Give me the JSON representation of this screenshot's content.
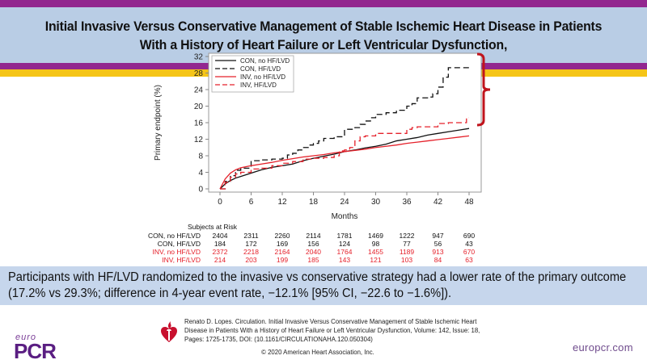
{
  "header": {
    "title": "Initial Invasive Versus Conservative Management of Stable Ischemic Heart Disease in Patients With a History of Heart Failure or Left Ventricular Dysfunction,"
  },
  "colors": {
    "purple": "#92278f",
    "title_band": "#b9cde5",
    "yellow": "#f5c518",
    "summary_band": "#c6d6ec",
    "con_color": "#111111",
    "inv_color": "#e5202a",
    "bracket": "#c0141c"
  },
  "chart_data": {
    "type": "line",
    "title": "",
    "xlabel": "Months",
    "ylabel": "Primary endpoint (%)",
    "xlim": [
      0,
      48
    ],
    "ylim": [
      0,
      32
    ],
    "xticks": [
      0,
      6,
      12,
      18,
      24,
      30,
      36,
      42,
      48
    ],
    "yticks": [
      0,
      4,
      8,
      12,
      16,
      20,
      24,
      28,
      32
    ],
    "grid": false,
    "legend_position": "top-left",
    "annotation": "bracket spanning INV HF/LVD (17.2%) to CON HF/LVD (29.3%) at 48 months",
    "series": [
      {
        "name": "CON, no HF/LVD",
        "style": "solid",
        "color": "#111111",
        "x": [
          0,
          1,
          2,
          3,
          4,
          6,
          8,
          10,
          12,
          14,
          16,
          18,
          20,
          22,
          24,
          26,
          28,
          30,
          32,
          34,
          36,
          38,
          40,
          42,
          44,
          46,
          48
        ],
        "y": [
          0,
          1.2,
          2.0,
          2.6,
          3.0,
          3.8,
          4.6,
          5.2,
          5.6,
          6.0,
          6.8,
          7.4,
          7.9,
          8.4,
          9.0,
          9.4,
          9.9,
          10.3,
          10.8,
          11.6,
          12.0,
          12.4,
          13.0,
          13.4,
          13.8,
          14.2,
          14.6
        ]
      },
      {
        "name": "CON, HF/LVD",
        "style": "dashed",
        "color": "#111111",
        "x": [
          0,
          1,
          2,
          3,
          4,
          6,
          8,
          10,
          12,
          13,
          14,
          15,
          16,
          17,
          18,
          19,
          20,
          22,
          24,
          26,
          27,
          28,
          29,
          30,
          32,
          34,
          36,
          37,
          38,
          40,
          41,
          42,
          43,
          44,
          48
        ],
        "y": [
          0,
          1.8,
          3.2,
          4.5,
          5.0,
          6.8,
          7.0,
          7.2,
          7.4,
          8.2,
          8.6,
          9.4,
          10.0,
          10.6,
          11.0,
          11.6,
          12.2,
          12.6,
          14.4,
          14.8,
          15.6,
          16.4,
          17.2,
          18.0,
          18.4,
          19.0,
          20.0,
          20.6,
          22.0,
          22.2,
          23.0,
          24.6,
          27.0,
          29.3,
          29.3
        ]
      },
      {
        "name": "INV, no HF/LVD",
        "style": "solid",
        "color": "#e5202a",
        "x": [
          0,
          1,
          2,
          3,
          4,
          6,
          8,
          10,
          12,
          14,
          16,
          18,
          20,
          22,
          24,
          26,
          28,
          30,
          32,
          34,
          36,
          38,
          40,
          42,
          44,
          46,
          48
        ],
        "y": [
          0,
          2.4,
          3.8,
          4.6,
          5.1,
          5.6,
          6.0,
          6.4,
          6.9,
          7.3,
          7.7,
          8.0,
          8.3,
          8.7,
          9.0,
          9.3,
          9.6,
          10.0,
          10.3,
          10.6,
          11.0,
          11.3,
          11.6,
          11.9,
          12.2,
          12.5,
          12.8
        ]
      },
      {
        "name": "INV, HF/LVD",
        "style": "dashed",
        "color": "#e5202a",
        "x": [
          0,
          1,
          2,
          3,
          4,
          6,
          8,
          10,
          12,
          14,
          16,
          18,
          20,
          22,
          23,
          24,
          25,
          26,
          27,
          28,
          30,
          34,
          36,
          37,
          38,
          42,
          44,
          47,
          47.5,
          48
        ],
        "y": [
          0,
          1.6,
          2.8,
          3.6,
          4.0,
          4.8,
          5.0,
          5.6,
          6.2,
          6.6,
          7.2,
          7.4,
          7.6,
          8.0,
          9.2,
          9.4,
          10.0,
          11.6,
          12.6,
          12.8,
          13.4,
          13.4,
          14.4,
          14.8,
          15.0,
          15.8,
          16.0,
          16.0,
          17.2,
          17.2
        ]
      }
    ],
    "subjects_at_risk": {
      "title": "Subjects at Risk",
      "timepoints": [
        0,
        6,
        12,
        18,
        24,
        30,
        36,
        42,
        48
      ],
      "rows": [
        {
          "label": "CON, no HF/LVD",
          "color": "black",
          "values": [
            2404,
            2311,
            2260,
            2114,
            1781,
            1469,
            1222,
            947,
            690
          ]
        },
        {
          "label": "CON, HF/LVD",
          "color": "black",
          "values": [
            184,
            172,
            169,
            156,
            124,
            98,
            77,
            56,
            43
          ]
        },
        {
          "label": "INV, no HF/LVD",
          "color": "red",
          "values": [
            2372,
            2218,
            2164,
            2040,
            1764,
            1455,
            1189,
            913,
            670
          ]
        },
        {
          "label": "INV, HF/LVD",
          "color": "red",
          "values": [
            214,
            203,
            199,
            185,
            143,
            121,
            103,
            84,
            63
          ]
        }
      ]
    }
  },
  "summary": {
    "line1": "Participants with HF/LVD randomized to the invasive vs conservative strategy had a lower rate of the primary outcome",
    "line2": "(17.2% vs 29.3%; difference in 4-year event rate, −12.1% [95% CI, −22.6 to −1.6%])."
  },
  "footer": {
    "reference": "Renato D. Lopes. Circulation. Initial Invasive Versus Conservative Management of Stable Ischemic Heart Disease in Patients With a History of Heart Failure or Left Ventricular Dysfunction, Volume: 142, Issue: 18, Pages: 1725-1735, DOI: (10.1161/CIRCULATIONAHA.120.050304)",
    "copyright": "© 2020 American Heart Association, Inc.",
    "logo_small": "euro",
    "logo_big": "PCR",
    "url": "europcr.com"
  }
}
